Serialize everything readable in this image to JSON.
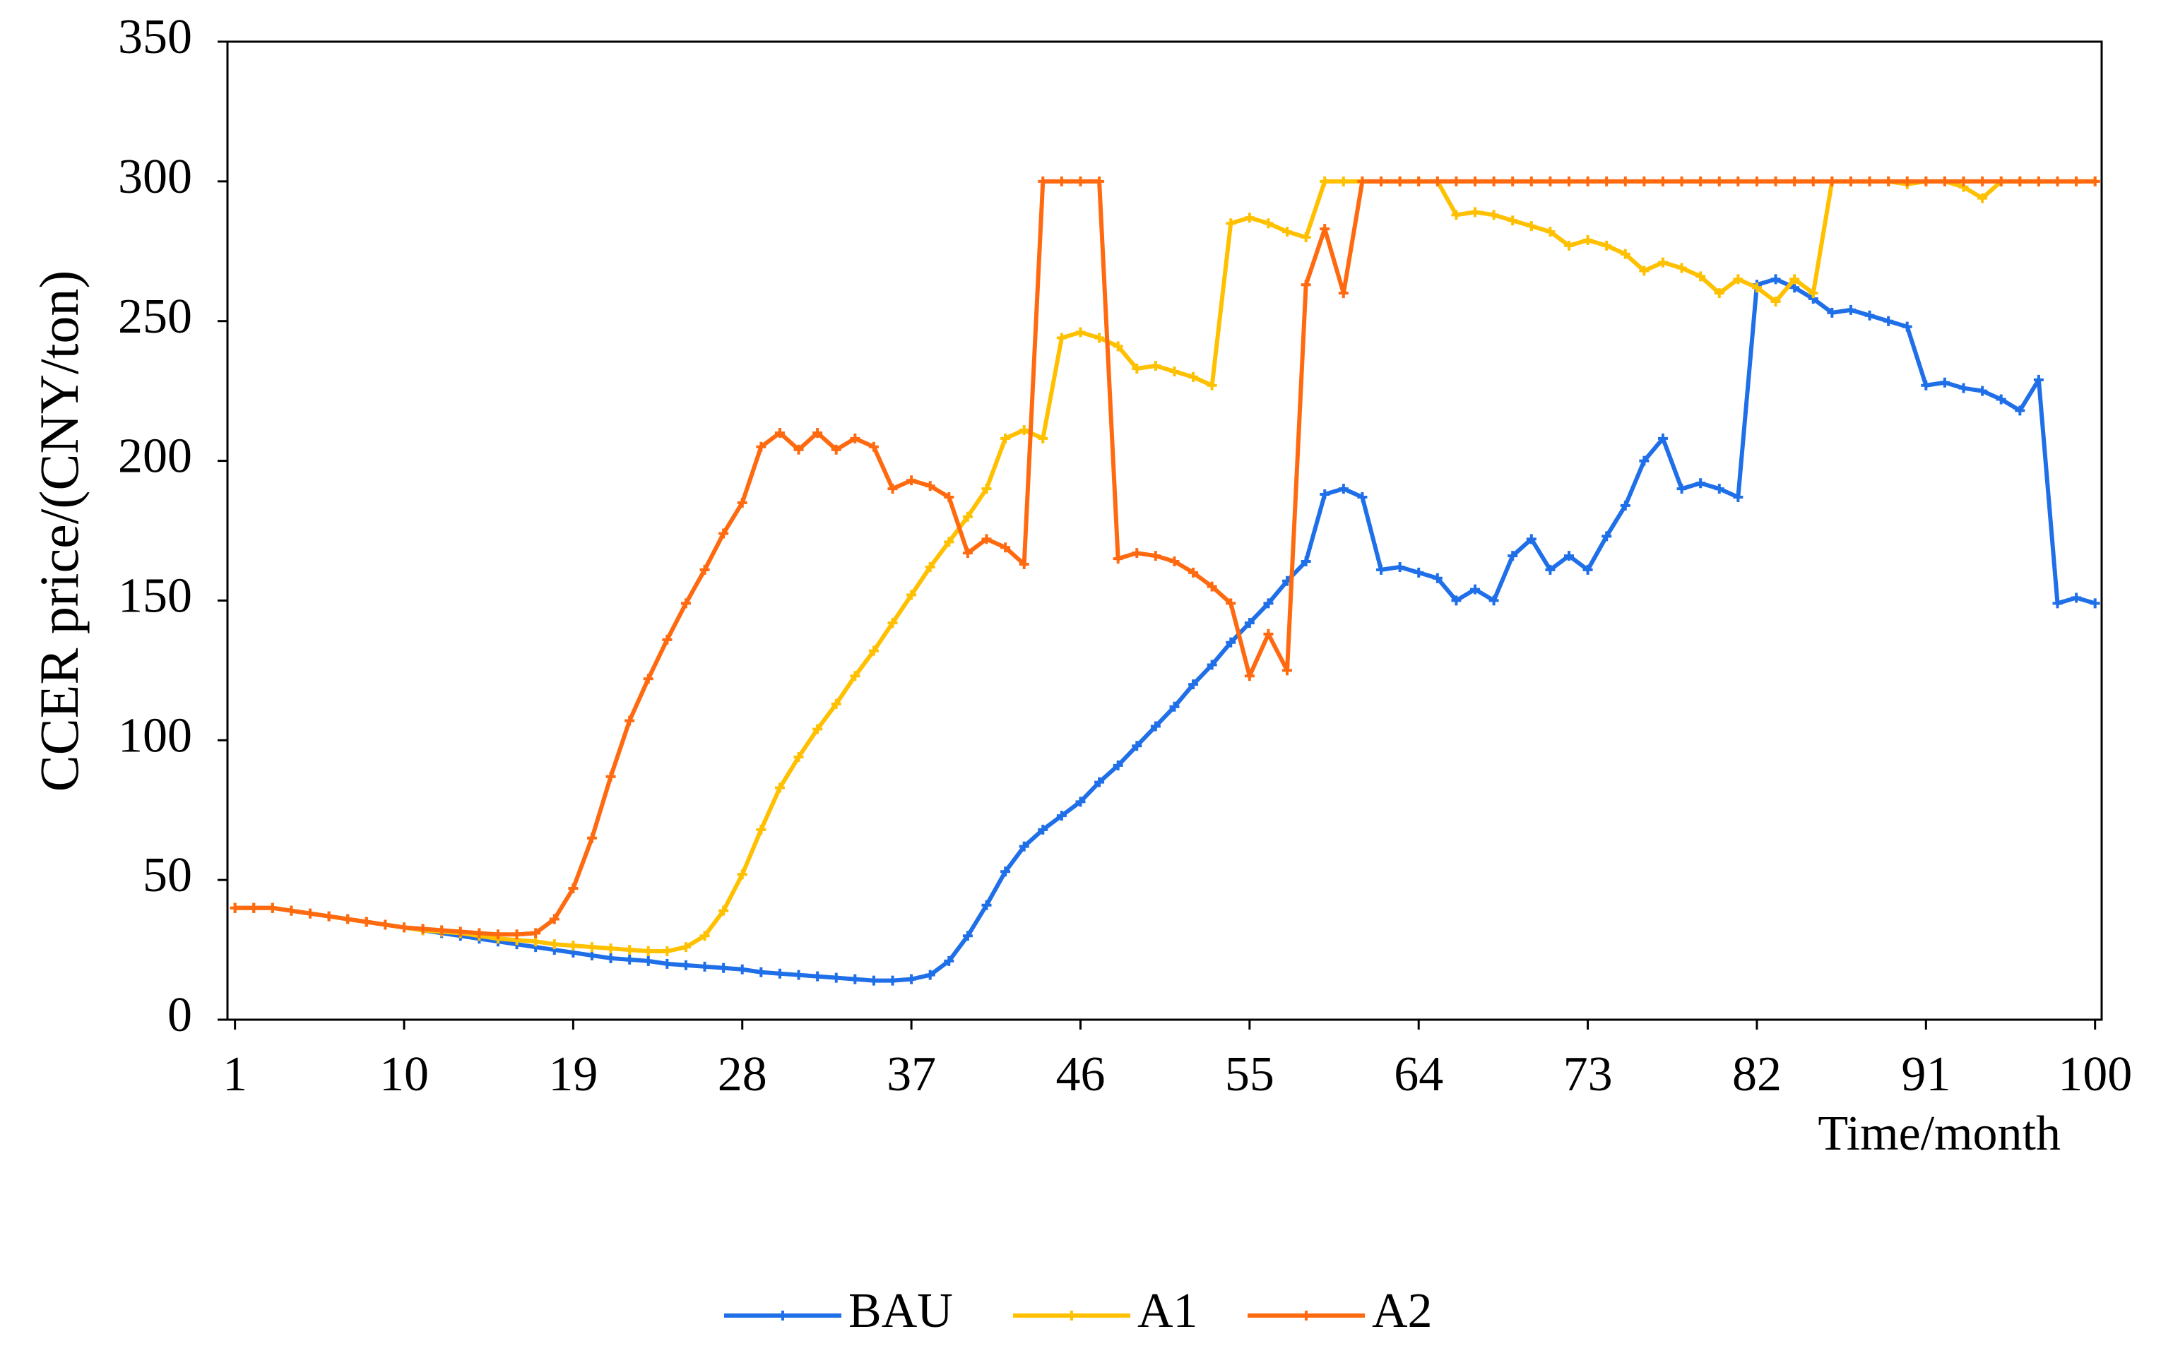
{
  "chart_data": {
    "type": "line",
    "xlabel": "Time/month",
    "ylabel": "CCER price/(CNY/ton)",
    "x": [
      1,
      2,
      3,
      4,
      5,
      6,
      7,
      8,
      9,
      10,
      11,
      12,
      13,
      14,
      15,
      16,
      17,
      18,
      19,
      20,
      21,
      22,
      23,
      24,
      25,
      26,
      27,
      28,
      29,
      30,
      31,
      32,
      33,
      34,
      35,
      36,
      37,
      38,
      39,
      40,
      41,
      42,
      43,
      44,
      45,
      46,
      47,
      48,
      49,
      50,
      51,
      52,
      53,
      54,
      55,
      56,
      57,
      58,
      59,
      60,
      61,
      62,
      63,
      64,
      65,
      66,
      67,
      68,
      69,
      70,
      71,
      72,
      73,
      74,
      75,
      76,
      77,
      78,
      79,
      80,
      81,
      82,
      83,
      84,
      85,
      86,
      87,
      88,
      89,
      90,
      91,
      92,
      93,
      94,
      95,
      96,
      97,
      98,
      99,
      100
    ],
    "series": [
      {
        "name": "BAU",
        "color": "#1f6fe8",
        "values": [
          40,
          40,
          40,
          39,
          38,
          37,
          36,
          35,
          34,
          33,
          32,
          31,
          30,
          29,
          28,
          27,
          26,
          25,
          24,
          23,
          22,
          21.5,
          21,
          20,
          19.5,
          19,
          18.5,
          18,
          17,
          16.5,
          16,
          15.5,
          15,
          14.5,
          14,
          14,
          14.5,
          16,
          21,
          30,
          41,
          53,
          62,
          68,
          73,
          78,
          85,
          91,
          98,
          105,
          112,
          120,
          127,
          135,
          142,
          149,
          157,
          164,
          188,
          190,
          187,
          161,
          162,
          160,
          158,
          150,
          154,
          150,
          166,
          172,
          161,
          166,
          161,
          173,
          184,
          200,
          208,
          190,
          192,
          190,
          187,
          263,
          265,
          262,
          258,
          253,
          254,
          252,
          250,
          248,
          227,
          228,
          226,
          225,
          222,
          218,
          229,
          149,
          151,
          149
        ]
      },
      {
        "name": "A1",
        "color": "#ffc000",
        "values": [
          40,
          40,
          40,
          39,
          38,
          37,
          36,
          35,
          34,
          33,
          32,
          31.5,
          31,
          30,
          29,
          28.5,
          28,
          27,
          26.5,
          26,
          25.5,
          25,
          24.5,
          24.5,
          26,
          30,
          39,
          52,
          68,
          83,
          94,
          104,
          113,
          123,
          132,
          142,
          152,
          162,
          171,
          180,
          190,
          208,
          211,
          208,
          244,
          246,
          244,
          241,
          233,
          234,
          232,
          230,
          227,
          285,
          287,
          285,
          282,
          280,
          300,
          300,
          300,
          300,
          300,
          300,
          300,
          288,
          289,
          288,
          286,
          284,
          282,
          277,
          279,
          277,
          274,
          268,
          271,
          269,
          266,
          260,
          265,
          262,
          257,
          265,
          260,
          300,
          300,
          300,
          300,
          299,
          300,
          300,
          298,
          294,
          300,
          300,
          300,
          300,
          300,
          300
        ]
      },
      {
        "name": "A2",
        "color": "#ff6a10",
        "values": [
          40,
          40,
          40,
          39,
          38,
          37,
          36,
          35,
          34,
          33,
          32.5,
          32,
          31.5,
          31,
          30.5,
          30.5,
          31,
          36,
          47,
          65,
          87,
          107,
          122,
          136,
          149,
          161,
          174,
          185,
          205,
          210,
          204,
          210,
          204,
          208,
          205,
          190,
          193,
          191,
          187,
          167,
          172,
          169,
          163,
          300,
          300,
          300,
          300,
          165,
          167,
          166,
          164,
          160,
          155,
          149,
          123,
          138,
          125,
          263,
          283,
          260,
          300,
          300,
          300,
          300,
          300,
          300,
          300,
          300,
          300,
          300,
          300,
          300,
          300,
          300,
          300,
          300,
          300,
          300,
          300,
          300,
          300,
          300,
          300,
          300,
          300,
          300,
          300,
          300,
          300,
          300,
          300,
          300,
          300,
          300,
          300,
          300,
          300,
          300,
          300,
          300
        ]
      }
    ],
    "xlim": [
      0.6,
      100.35
    ],
    "xticks": [
      1,
      10,
      19,
      28,
      37,
      46,
      55,
      64,
      73,
      82,
      91,
      100
    ],
    "ylim": [
      0,
      350
    ],
    "yticks": [
      0,
      50,
      100,
      150,
      200,
      250,
      300,
      350
    ],
    "legend": "bottom"
  }
}
